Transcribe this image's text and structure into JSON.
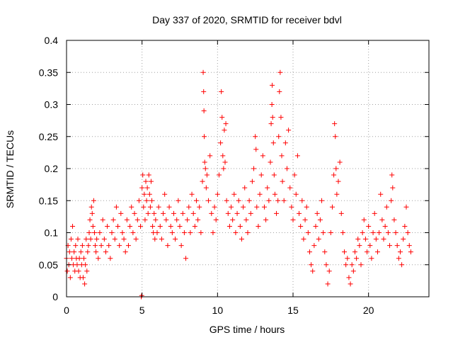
{
  "chart_data": {
    "type": "scatter",
    "title": "Day 337 of 2020, SRMTID for receiver bdvl",
    "xlabel": "GPS time / hours",
    "ylabel": "SRMTID / TECUs",
    "xlim": [
      0,
      24
    ],
    "ylim": [
      0,
      0.4
    ],
    "x_ticks": [
      0,
      5,
      10,
      15,
      20
    ],
    "y_ticks": [
      0,
      0.05,
      0.1,
      0.15,
      0.2,
      0.25,
      0.3,
      0.35,
      0.4
    ],
    "x_tick_labels": [
      "0",
      "5",
      "10",
      "15",
      "20"
    ],
    "y_tick_labels": [
      "0",
      "0.05",
      "0.1",
      "0.15",
      "0.2",
      "0.25",
      "0.3",
      "0.35",
      "0.4"
    ],
    "grid": true,
    "marker": "+",
    "color": "#ff0000",
    "series": [
      {
        "points": [
          [
            0.0,
            0.06
          ],
          [
            0.05,
            0.04
          ],
          [
            0.1,
            0.08
          ],
          [
            0.15,
            0.05
          ],
          [
            0.2,
            0.07
          ],
          [
            0.25,
            0.03
          ],
          [
            0.3,
            0.09
          ],
          [
            0.35,
            0.06
          ],
          [
            0.4,
            0.11
          ],
          [
            0.45,
            0.05
          ],
          [
            0.5,
            0.07
          ],
          [
            0.55,
            0.04
          ],
          [
            0.6,
            0.08
          ],
          [
            0.65,
            0.06
          ],
          [
            0.7,
            0.05
          ],
          [
            0.75,
            0.09
          ],
          [
            0.8,
            0.04
          ],
          [
            0.85,
            0.06
          ],
          [
            0.9,
            0.03
          ],
          [
            0.95,
            0.07
          ],
          [
            1.0,
            0.05
          ],
          [
            1.05,
            0.08
          ],
          [
            1.1,
            0.03
          ],
          [
            1.15,
            0.06
          ],
          [
            1.2,
            0.02
          ],
          [
            1.25,
            0.05
          ],
          [
            1.3,
            0.09
          ],
          [
            1.35,
            0.04
          ],
          [
            1.4,
            0.07
          ],
          [
            1.45,
            0.08
          ],
          [
            1.5,
            0.1
          ],
          [
            1.55,
            0.12
          ],
          [
            1.6,
            0.09
          ],
          [
            1.65,
            0.14
          ],
          [
            1.7,
            0.13
          ],
          [
            1.75,
            0.11
          ],
          [
            1.8,
            0.15
          ],
          [
            1.85,
            0.1
          ],
          [
            1.9,
            0.08
          ],
          [
            1.95,
            0.07
          ],
          [
            2.0,
            0.09
          ],
          [
            2.1,
            0.06
          ],
          [
            2.2,
            0.1
          ],
          [
            2.3,
            0.08
          ],
          [
            2.4,
            0.12
          ],
          [
            2.5,
            0.09
          ],
          [
            2.6,
            0.07
          ],
          [
            2.7,
            0.11
          ],
          [
            2.8,
            0.08
          ],
          [
            2.9,
            0.06
          ],
          [
            3.0,
            0.1
          ],
          [
            3.1,
            0.12
          ],
          [
            3.2,
            0.09
          ],
          [
            3.3,
            0.14
          ],
          [
            3.4,
            0.11
          ],
          [
            3.5,
            0.08
          ],
          [
            3.6,
            0.13
          ],
          [
            3.7,
            0.1
          ],
          [
            3.8,
            0.09
          ],
          [
            3.9,
            0.07
          ],
          [
            4.0,
            0.12
          ],
          [
            4.1,
            0.08
          ],
          [
            4.2,
            0.11
          ],
          [
            4.3,
            0.14
          ],
          [
            4.4,
            0.1
          ],
          [
            4.5,
            0.13
          ],
          [
            4.6,
            0.09
          ],
          [
            4.7,
            0.12
          ],
          [
            4.8,
            0.15
          ],
          [
            4.9,
            0.11
          ],
          [
            4.95,
            0.0
          ],
          [
            4.98,
            0.002
          ],
          [
            5.0,
            0.17
          ],
          [
            5.05,
            0.19
          ],
          [
            5.1,
            0.14
          ],
          [
            5.15,
            0.16
          ],
          [
            5.2,
            0.12
          ],
          [
            5.25,
            0.18
          ],
          [
            5.3,
            0.15
          ],
          [
            5.35,
            0.17
          ],
          [
            5.4,
            0.13
          ],
          [
            5.45,
            0.19
          ],
          [
            5.5,
            0.16
          ],
          [
            5.55,
            0.14
          ],
          [
            5.6,
            0.18
          ],
          [
            5.65,
            0.15
          ],
          [
            5.7,
            0.11
          ],
          [
            5.75,
            0.1
          ],
          [
            5.8,
            0.13
          ],
          [
            5.85,
            0.09
          ],
          [
            5.9,
            0.12
          ],
          [
            6.0,
            0.1
          ],
          [
            6.1,
            0.14
          ],
          [
            6.2,
            0.11
          ],
          [
            6.3,
            0.09
          ],
          [
            6.4,
            0.13
          ],
          [
            6.5,
            0.16
          ],
          [
            6.6,
            0.12
          ],
          [
            6.7,
            0.08
          ],
          [
            6.8,
            0.14
          ],
          [
            6.9,
            0.11
          ],
          [
            7.0,
            0.1
          ],
          [
            7.1,
            0.13
          ],
          [
            7.2,
            0.09
          ],
          [
            7.3,
            0.12
          ],
          [
            7.4,
            0.15
          ],
          [
            7.5,
            0.11
          ],
          [
            7.6,
            0.08
          ],
          [
            7.7,
            0.13
          ],
          [
            7.8,
            0.1
          ],
          [
            7.9,
            0.06
          ],
          [
            8.0,
            0.12
          ],
          [
            8.1,
            0.14
          ],
          [
            8.2,
            0.1
          ],
          [
            8.3,
            0.16
          ],
          [
            8.4,
            0.13
          ],
          [
            8.5,
            0.11
          ],
          [
            8.6,
            0.15
          ],
          [
            8.7,
            0.12
          ],
          [
            8.8,
            0.14
          ],
          [
            8.9,
            0.1
          ],
          [
            9.0,
            0.18
          ],
          [
            9.05,
            0.35
          ],
          [
            9.08,
            0.32
          ],
          [
            9.1,
            0.29
          ],
          [
            9.12,
            0.25
          ],
          [
            9.15,
            0.21
          ],
          [
            9.2,
            0.2
          ],
          [
            9.25,
            0.17
          ],
          [
            9.3,
            0.19
          ],
          [
            9.4,
            0.15
          ],
          [
            9.5,
            0.22
          ],
          [
            9.6,
            0.13
          ],
          [
            9.7,
            0.1
          ],
          [
            9.8,
            0.14
          ],
          [
            9.9,
            0.12
          ],
          [
            10.0,
            0.16
          ],
          [
            10.1,
            0.19
          ],
          [
            10.2,
            0.24
          ],
          [
            10.25,
            0.32
          ],
          [
            10.3,
            0.28
          ],
          [
            10.35,
            0.22
          ],
          [
            10.4,
            0.2
          ],
          [
            10.45,
            0.26
          ],
          [
            10.5,
            0.21
          ],
          [
            10.55,
            0.27
          ],
          [
            10.6,
            0.15
          ],
          [
            10.7,
            0.13
          ],
          [
            10.8,
            0.11
          ],
          [
            10.9,
            0.14
          ],
          [
            11.0,
            0.12
          ],
          [
            11.1,
            0.16
          ],
          [
            11.2,
            0.1
          ],
          [
            11.3,
            0.13
          ],
          [
            11.4,
            0.15
          ],
          [
            11.5,
            0.11
          ],
          [
            11.6,
            0.09
          ],
          [
            11.7,
            0.14
          ],
          [
            11.8,
            0.17
          ],
          [
            11.9,
            0.12
          ],
          [
            12.0,
            0.1
          ],
          [
            12.1,
            0.15
          ],
          [
            12.2,
            0.13
          ],
          [
            12.3,
            0.18
          ],
          [
            12.4,
            0.2
          ],
          [
            12.5,
            0.25
          ],
          [
            12.55,
            0.23
          ],
          [
            12.6,
            0.14
          ],
          [
            12.7,
            0.11
          ],
          [
            12.8,
            0.16
          ],
          [
            12.9,
            0.19
          ],
          [
            13.0,
            0.22
          ],
          [
            13.1,
            0.14
          ],
          [
            13.2,
            0.12
          ],
          [
            13.3,
            0.17
          ],
          [
            13.4,
            0.15
          ],
          [
            13.5,
            0.21
          ],
          [
            13.55,
            0.27
          ],
          [
            13.6,
            0.3
          ],
          [
            13.62,
            0.33
          ],
          [
            13.65,
            0.28
          ],
          [
            13.7,
            0.24
          ],
          [
            13.75,
            0.19
          ],
          [
            13.8,
            0.16
          ],
          [
            13.9,
            0.13
          ],
          [
            14.0,
            0.15
          ],
          [
            14.05,
            0.25
          ],
          [
            14.1,
            0.32
          ],
          [
            14.15,
            0.35
          ],
          [
            14.2,
            0.28
          ],
          [
            14.25,
            0.22
          ],
          [
            14.3,
            0.18
          ],
          [
            14.4,
            0.15
          ],
          [
            14.5,
            0.24
          ],
          [
            14.6,
            0.2
          ],
          [
            14.7,
            0.26
          ],
          [
            14.8,
            0.17
          ],
          [
            14.9,
            0.14
          ],
          [
            15.0,
            0.12
          ],
          [
            15.1,
            0.19
          ],
          [
            15.2,
            0.16
          ],
          [
            15.3,
            0.22
          ],
          [
            15.4,
            0.13
          ],
          [
            15.5,
            0.11
          ],
          [
            15.6,
            0.15
          ],
          [
            15.7,
            0.09
          ],
          [
            15.8,
            0.12
          ],
          [
            15.9,
            0.14
          ],
          [
            16.0,
            0.1
          ],
          [
            16.1,
            0.07
          ],
          [
            16.2,
            0.05
          ],
          [
            16.3,
            0.04
          ],
          [
            16.4,
            0.08
          ],
          [
            16.5,
            0.11
          ],
          [
            16.6,
            0.13
          ],
          [
            16.7,
            0.09
          ],
          [
            16.8,
            0.12
          ],
          [
            16.9,
            0.15
          ],
          [
            17.0,
            0.1
          ],
          [
            17.1,
            0.07
          ],
          [
            17.2,
            0.05
          ],
          [
            17.3,
            0.02
          ],
          [
            17.4,
            0.04
          ],
          [
            17.5,
            0.1
          ],
          [
            17.6,
            0.14
          ],
          [
            17.7,
            0.19
          ],
          [
            17.75,
            0.27
          ],
          [
            17.8,
            0.25
          ],
          [
            17.85,
            0.2
          ],
          [
            17.9,
            0.16
          ],
          [
            18.0,
            0.18
          ],
          [
            18.1,
            0.21
          ],
          [
            18.2,
            0.13
          ],
          [
            18.3,
            0.1
          ],
          [
            18.4,
            0.07
          ],
          [
            18.5,
            0.05
          ],
          [
            18.6,
            0.06
          ],
          [
            18.7,
            0.03
          ],
          [
            18.8,
            0.02
          ],
          [
            18.9,
            0.05
          ],
          [
            19.0,
            0.04
          ],
          [
            19.1,
            0.07
          ],
          [
            19.2,
            0.06
          ],
          [
            19.3,
            0.09
          ],
          [
            19.4,
            0.08
          ],
          [
            19.5,
            0.05
          ],
          [
            19.6,
            0.1
          ],
          [
            19.7,
            0.12
          ],
          [
            19.8,
            0.09
          ],
          [
            19.9,
            0.07
          ],
          [
            20.0,
            0.11
          ],
          [
            20.1,
            0.08
          ],
          [
            20.2,
            0.06
          ],
          [
            20.3,
            0.1
          ],
          [
            20.4,
            0.13
          ],
          [
            20.5,
            0.09
          ],
          [
            20.6,
            0.07
          ],
          [
            20.7,
            0.1
          ],
          [
            20.8,
            0.16
          ],
          [
            20.9,
            0.12
          ],
          [
            21.0,
            0.09
          ],
          [
            21.1,
            0.11
          ],
          [
            21.2,
            0.14
          ],
          [
            21.3,
            0.1
          ],
          [
            21.4,
            0.08
          ],
          [
            21.5,
            0.15
          ],
          [
            21.55,
            0.19
          ],
          [
            21.6,
            0.17
          ],
          [
            21.7,
            0.12
          ],
          [
            21.8,
            0.1
          ],
          [
            21.9,
            0.08
          ],
          [
            22.0,
            0.06
          ],
          [
            22.1,
            0.07
          ],
          [
            22.2,
            0.05
          ],
          [
            22.3,
            0.09
          ],
          [
            22.4,
            0.11
          ],
          [
            22.5,
            0.14
          ],
          [
            22.6,
            0.1
          ],
          [
            22.7,
            0.08
          ],
          [
            22.8,
            0.07
          ]
        ]
      }
    ]
  }
}
